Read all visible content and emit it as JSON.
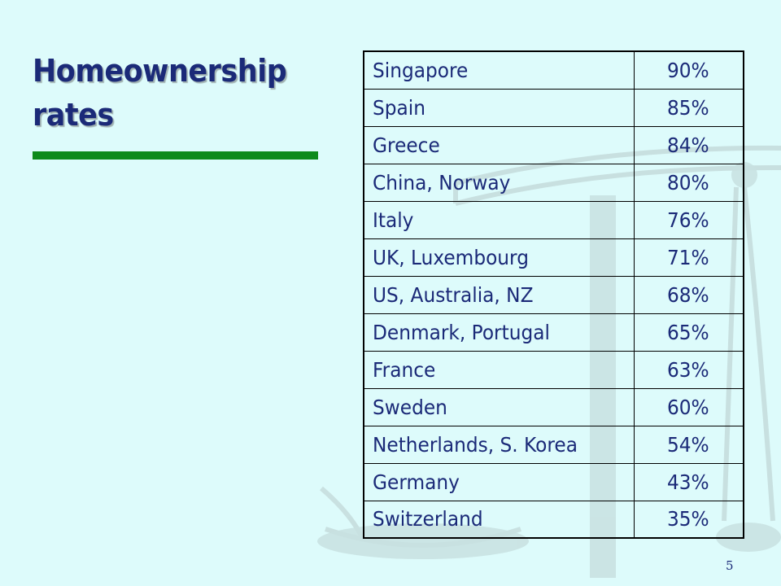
{
  "slide": {
    "title": "Homeownership\nrates",
    "page_number": "5",
    "colors": {
      "background": "#ddfbfb",
      "title": "#1b2a78",
      "accent_line": "#0d8a1b",
      "text": "#1b2a78"
    }
  },
  "table": {
    "rows": [
      {
        "country": "Singapore",
        "rate": "90%"
      },
      {
        "country": "Spain",
        "rate": "85%"
      },
      {
        "country": "Greece",
        "rate": "84%"
      },
      {
        "country": "China, Norway",
        "rate": "80%"
      },
      {
        "country": "Italy",
        "rate": "76%"
      },
      {
        "country": "UK, Luxembourg",
        "rate": "71%"
      },
      {
        "country": "US, Australia, NZ",
        "rate": "68%"
      },
      {
        "country": "Denmark, Portugal",
        "rate": "65%"
      },
      {
        "country": "France",
        "rate": "63%"
      },
      {
        "country": "Sweden",
        "rate": "60%"
      },
      {
        "country": "Netherlands, S. Korea",
        "rate": "54%"
      },
      {
        "country": "Germany",
        "rate": "43%"
      },
      {
        "country": "Switzerland",
        "rate": "35%"
      }
    ]
  },
  "background_icon": "scales-of-justice-icon"
}
